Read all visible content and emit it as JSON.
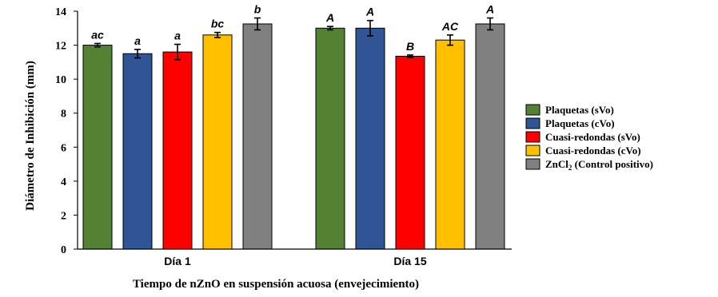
{
  "chart_data": {
    "type": "bar",
    "title": "",
    "xlabel": "Tiempo de nZnO en suspensión acuosa (envejecimiento)",
    "ylabel": "Diámetro de Inhibición (mm)",
    "ylim": [
      0,
      14
    ],
    "yticks": [
      "0",
      "2",
      "4",
      "6",
      "8",
      "10",
      "12",
      "14"
    ],
    "categories": [
      "Día 1",
      "Día 15"
    ],
    "grid": false,
    "legend_position": "right",
    "series": [
      {
        "name": "Plaquetas (sVo)",
        "color": "#548235",
        "values": [
          12.0,
          13.0
        ],
        "errors": [
          0.1,
          0.1
        ],
        "labels": [
          "ac",
          "A"
        ]
      },
      {
        "name": "Plaquetas (cVo)",
        "color": "#2F5597",
        "values": [
          11.5,
          13.0
        ],
        "errors": [
          0.25,
          0.45
        ],
        "labels": [
          "a",
          "A"
        ]
      },
      {
        "name": "Cuasi-redondas (sVo)",
        "color": "#FF0000",
        "values": [
          11.6,
          11.35
        ],
        "errors": [
          0.45,
          0.07
        ],
        "labels": [
          "a",
          "B"
        ]
      },
      {
        "name": "Cuasi-redondas (cVo)",
        "color": "#FFC000",
        "values": [
          12.6,
          12.3
        ],
        "errors": [
          0.15,
          0.3
        ],
        "labels": [
          "bc",
          "AC"
        ]
      },
      {
        "name": "ZnCl2 (Control positivo)",
        "legend_main": "ZnCl",
        "legend_sub": "2",
        "legend_rest": " (Control positivo)",
        "color": "#808080",
        "values": [
          13.25,
          13.25
        ],
        "errors": [
          0.35,
          0.35
        ],
        "labels": [
          "b",
          "A"
        ]
      }
    ]
  }
}
